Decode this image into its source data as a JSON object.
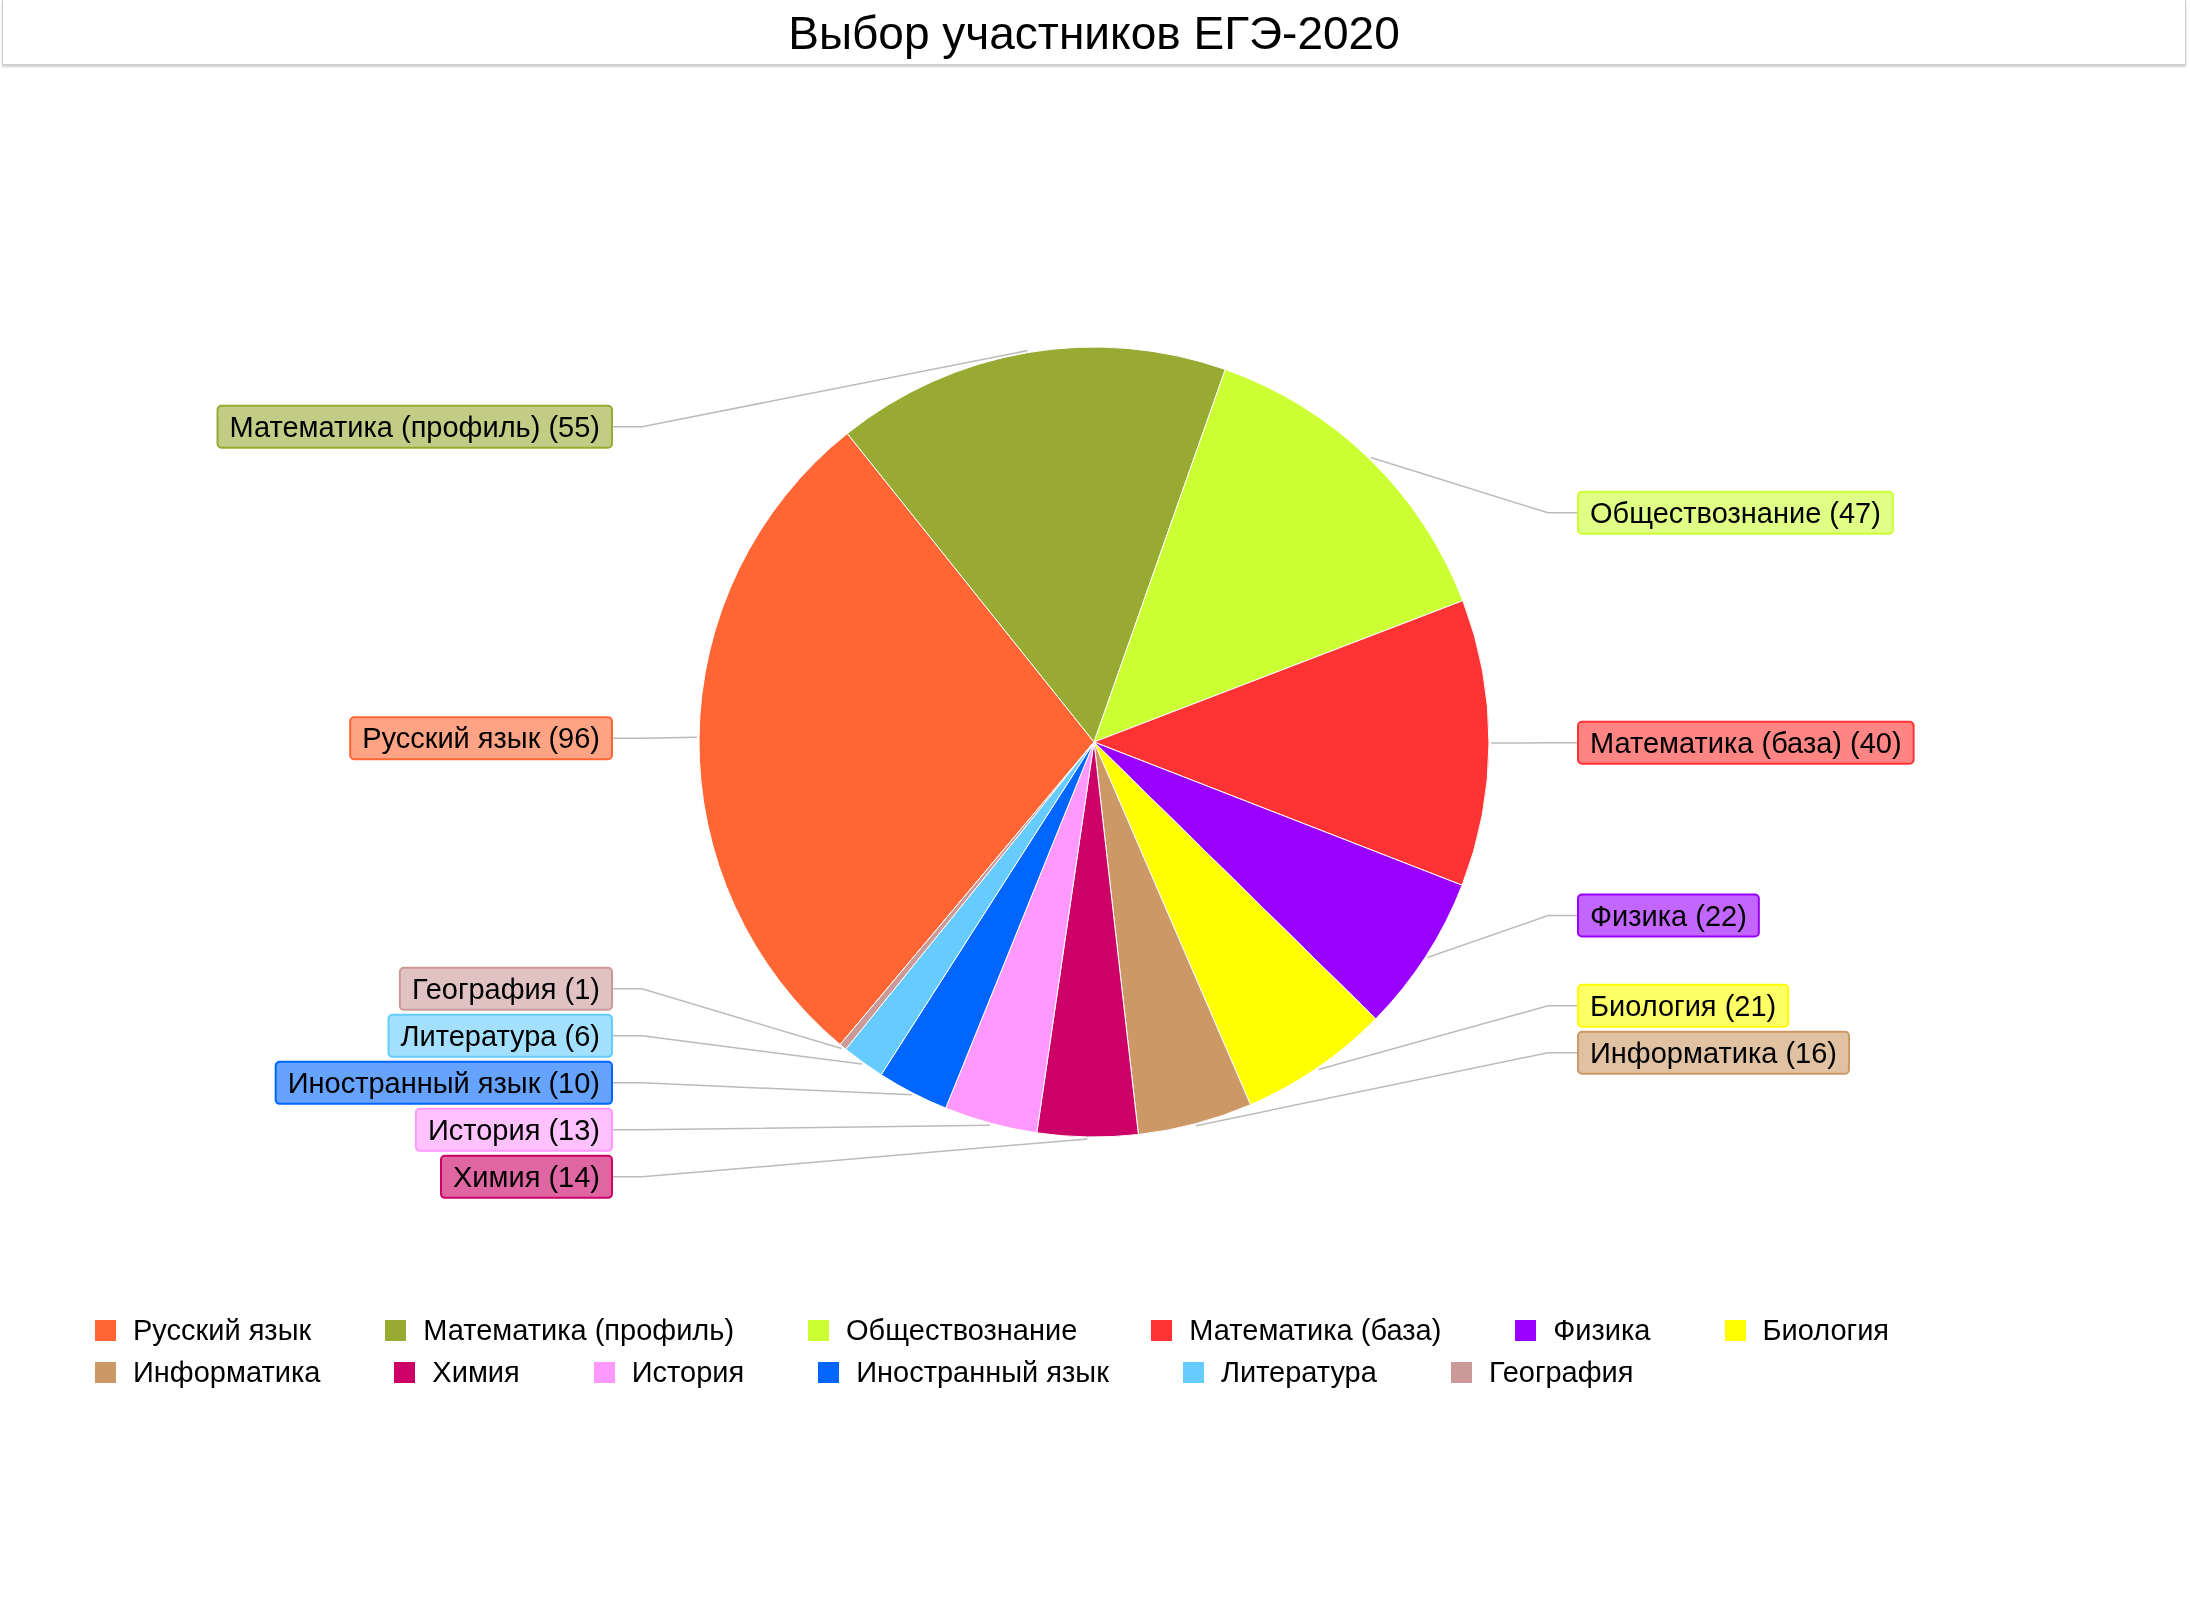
{
  "chart_data": {
    "type": "pie",
    "title": "Выбор участников ЕГЭ-2020",
    "categories": [
      "Русский язык",
      "Математика (профиль)",
      "Обществознание",
      "Математика (база)",
      "Физика",
      "Биология",
      "Информатика",
      "Химия",
      "История",
      "Иностранный язык",
      "Литература",
      "География"
    ],
    "values": [
      96,
      55,
      47,
      40,
      22,
      21,
      16,
      14,
      13,
      10,
      6,
      1
    ],
    "value_labels": [
      "(96)",
      "(55)",
      "(47)",
      "(40)",
      "(22)",
      "(21)",
      "(16)",
      "(14)",
      "(13)",
      "(10)",
      "(6)",
      "(1)"
    ],
    "colors": [
      "#ff6633",
      "#99aa33",
      "#ccff33",
      "#ff3333",
      "#9900ff",
      "#ffff00",
      "#cc9966",
      "#cc0066",
      "#ff99ff",
      "#0066ff",
      "#66ccff",
      "#cc9999"
    ],
    "legend": "bottom"
  }
}
